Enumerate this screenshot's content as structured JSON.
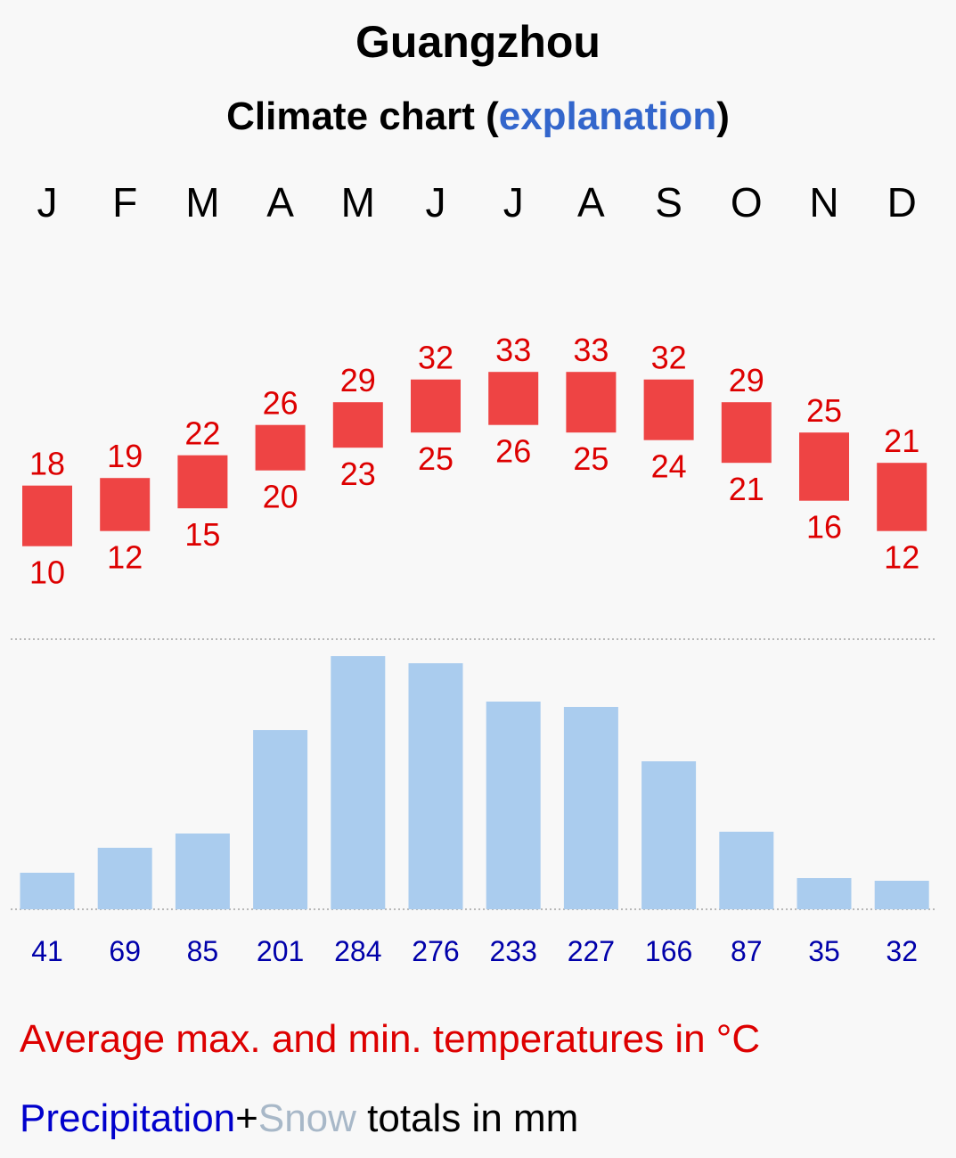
{
  "title": "Guangzhou",
  "subtitle": {
    "prefix": "Climate chart (",
    "link": "explanation",
    "suffix": ")"
  },
  "legend": {
    "temperature": "Average max. and min. temperatures in °C",
    "precipitation": "Precipitation",
    "plus": "+",
    "snow": "Snow",
    "totals": " totals in mm"
  },
  "colors": {
    "temp_bar": "#ee4444",
    "temp_text": "#dd0000",
    "precip_bar": "#aaccee",
    "precip_text": "#0000aa",
    "link": "#3366cc",
    "snow": "#a8b8c8"
  },
  "chart_data": {
    "type": "bar",
    "title": "Guangzhou",
    "categories": [
      "J",
      "F",
      "M",
      "A",
      "M",
      "J",
      "J",
      "A",
      "S",
      "O",
      "N",
      "D"
    ],
    "series": [
      {
        "name": "Average max. temperature (°C)",
        "values": [
          18,
          19,
          22,
          26,
          29,
          32,
          33,
          33,
          32,
          29,
          25,
          21
        ]
      },
      {
        "name": "Average min. temperature (°C)",
        "values": [
          10,
          12,
          15,
          20,
          23,
          25,
          26,
          25,
          24,
          21,
          16,
          12
        ]
      },
      {
        "name": "Precipitation (mm)",
        "values": [
          41,
          69,
          85,
          201,
          284,
          276,
          233,
          227,
          166,
          87,
          35,
          32
        ]
      }
    ]
  }
}
